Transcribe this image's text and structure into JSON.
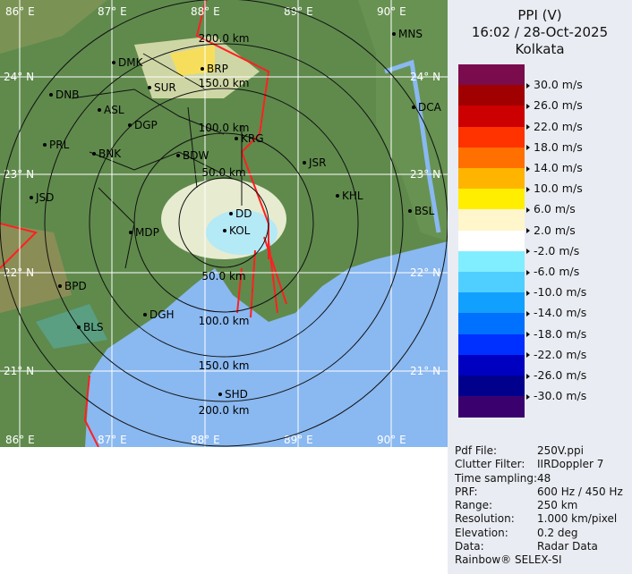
{
  "header": {
    "product": "PPI (V)",
    "datetime": "16:02 / 28-Oct-2025",
    "station": "Kolkata"
  },
  "legend": [
    {
      "color": "#7a0c4e",
      "label": ""
    },
    {
      "color": "#a00000",
      "label": "30.0 m/s"
    },
    {
      "color": "#cc0000",
      "label": "26.0 m/s"
    },
    {
      "color": "#ff3300",
      "label": "22.0 m/s"
    },
    {
      "color": "#ff7000",
      "label": "18.0 m/s"
    },
    {
      "color": "#ffb400",
      "label": "14.0 m/s"
    },
    {
      "color": "#ffee00",
      "label": "10.0 m/s"
    },
    {
      "color": "#fff6cc",
      "label": "6.0 m/s"
    },
    {
      "color": "#ffffff",
      "label": "2.0 m/s"
    },
    {
      "color": "#80eeff",
      "label": "-2.0 m/s"
    },
    {
      "color": "#4fcfff",
      "label": "-6.0 m/s"
    },
    {
      "color": "#12a0ff",
      "label": "-10.0 m/s"
    },
    {
      "color": "#0070ff",
      "label": "-14.0 m/s"
    },
    {
      "color": "#0030ff",
      "label": "-18.0 m/s"
    },
    {
      "color": "#0000c0",
      "label": "-22.0 m/s"
    },
    {
      "color": "#00008c",
      "label": "-26.0 m/s"
    },
    {
      "color": "#3a006e",
      "label": "-30.0 m/s"
    }
  ],
  "info": [
    {
      "k": "Pdf File:",
      "v": "250V.ppi"
    },
    {
      "k": "Clutter Filter:",
      "v": "IIRDoppler 7"
    },
    {
      "k": "Time sampling:",
      "v": "48"
    },
    {
      "k": "PRF:",
      "v": "600 Hz / 450 Hz"
    },
    {
      "k": "Range:",
      "v": "250 km"
    },
    {
      "k": "Resolution:",
      "v": "1.000 km/pixel"
    },
    {
      "k": "Elevation:",
      "v": "0.2 deg"
    },
    {
      "k": "Data:",
      "v": "Radar Data"
    }
  ],
  "footer": "Rainbow® SELEX-SI",
  "map": {
    "colors": {
      "land": "#5f8a4c",
      "sea": "#8ab8f0",
      "border": "#ff2020",
      "district": "#111111"
    },
    "rings": [
      "50.0 km",
      "100.0 km",
      "150.0 km",
      "200.0 km"
    ],
    "lon_labels": [
      "86° E",
      "87° E",
      "88° E",
      "89° E",
      "90° E"
    ],
    "lat_labels": [
      "24° N",
      "23° N",
      "22° N",
      "21° N"
    ],
    "cities": [
      "MNS",
      "DMK",
      "BRP",
      "SUR",
      "DNB",
      "ASL",
      "DCA",
      "DGP",
      "KRG",
      "PRL",
      "BNK",
      "JSR",
      "BDW",
      "JSD",
      "KHL",
      "DD",
      "BSL",
      "KOL",
      "MDP",
      "BPD",
      "DGH",
      "BLS",
      "SHD"
    ]
  }
}
